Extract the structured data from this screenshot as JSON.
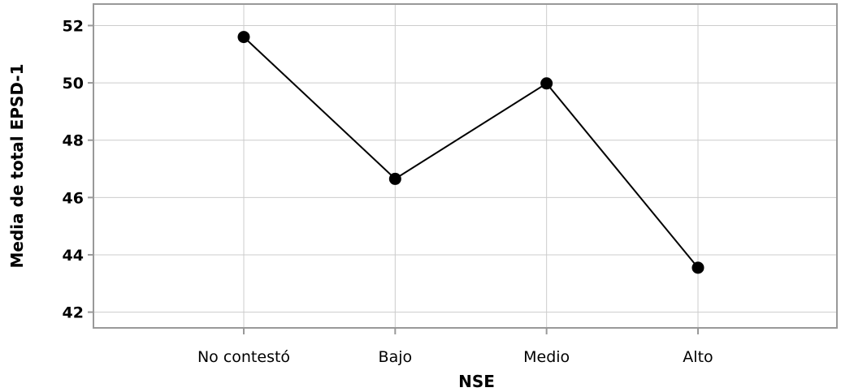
{
  "chart_data": {
    "type": "line",
    "categories": [
      "No contestó",
      "Bajo",
      "Medio",
      "Alto"
    ],
    "values": [
      51.6,
      46.65,
      49.98,
      43.55
    ],
    "xlabel": "NSE",
    "ylabel": "Media de total EPSD-1",
    "yticks": [
      42,
      44,
      46,
      48,
      50,
      52
    ],
    "ylim": [
      41.45,
      52.75
    ],
    "grid": true,
    "legend": "none",
    "colors": {
      "line": "#000000",
      "marker": "#000000",
      "grid": "#cccccc",
      "axis": "#999999"
    }
  }
}
